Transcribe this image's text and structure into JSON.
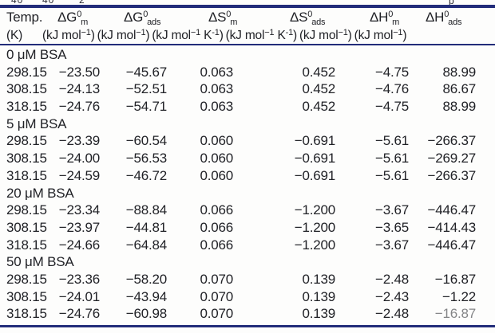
{
  "accent_color": "#222c7a",
  "clipped_fragments": {
    "f1": "40",
    "f2": "40",
    "f3": "2",
    "f4": "p"
  },
  "table": {
    "columns": [
      {
        "sym": "Temp.",
        "unit_pre": "(K)"
      },
      {
        "sym": "ΔG",
        "sym_sup": "0",
        "sym_sub": "m",
        "unit_pre": "(kJ mol",
        "unit_sup1": "−1",
        "unit_mid": ")"
      },
      {
        "sym": "ΔG",
        "sym_sup": "0",
        "sym_sub": "ads",
        "unit_pre": "(kJ mol",
        "unit_sup1": "−1",
        "unit_mid": ")"
      },
      {
        "sym": "ΔS",
        "sym_sup": "0",
        "sym_sub": "m",
        "unit_pre": "(kJ mol",
        "unit_sup1": "−1",
        "unit_mid": " K",
        "unit_sup2": "-1",
        "unit_post": ")"
      },
      {
        "sym": "ΔS",
        "sym_sup": "0",
        "sym_sub": "ads",
        "unit_pre": "(kJ mol",
        "unit_sup1": "−1",
        "unit_mid": " K",
        "unit_sup2": "-1",
        "unit_post": ")"
      },
      {
        "sym": "ΔH",
        "sym_sup": "0",
        "sym_sub": "m",
        "unit_pre": "(kJ mol",
        "unit_sup1": "−1",
        "unit_mid": ")"
      },
      {
        "sym": "ΔH",
        "sym_sup": "0",
        "sym_sub": "ads",
        "unit_pre": "(kJ mol",
        "unit_sup1": "−1",
        "unit_mid": ")"
      }
    ],
    "sections": [
      {
        "label": "0 μM BSA",
        "rows": [
          [
            "298.15",
            "−23.50",
            "−45.67",
            "0.063",
            "0.452",
            "−4.75",
            "88.99"
          ],
          [
            "308.15",
            "−24.13",
            "−52.51",
            "0.063",
            "0.452",
            "−4.76",
            "86.67"
          ],
          [
            "318.15",
            "−24.76",
            "−54.71",
            "0.063",
            "0.452",
            "−4.75",
            "88.99"
          ]
        ]
      },
      {
        "label": "5 μM BSA",
        "rows": [
          [
            "298.15",
            "−23.39",
            "−60.54",
            "0.060",
            "−0.691",
            "−5.61",
            "−266.37"
          ],
          [
            "308.15",
            "−24.00",
            "−56.53",
            "0.060",
            "−0.691",
            "−5.61",
            "−269.27"
          ],
          [
            "318.15",
            "−24.59",
            "−46.72",
            "0.060",
            "−0.691",
            "−5.61",
            "−266.37"
          ]
        ]
      },
      {
        "label": "20 μM BSA",
        "rows": [
          [
            "298.15",
            "−23.34",
            "−88.84",
            "0.066",
            "−1.200",
            "−3.67",
            "−446.47"
          ],
          [
            "308.15",
            "−23.97",
            "−44.81",
            "0.066",
            "−1.200",
            "−3.65",
            "−414.43"
          ],
          [
            "318.15",
            "−24.66",
            "−64.84",
            "0.066",
            "−1.200",
            "−3.67",
            "−446.47"
          ]
        ]
      },
      {
        "label": "50 μM BSA",
        "rows": [
          [
            "298.15",
            "−23.36",
            "−58.20",
            "0.070",
            "0.139",
            "−2.48",
            "−16.87"
          ],
          [
            "308.15",
            "−24.01",
            "−43.94",
            "0.070",
            "0.139",
            "−2.43",
            "−1.22"
          ],
          [
            "318.15",
            "−24.76",
            "−60.98",
            "0.070",
            "0.139",
            "−2.48",
            "−16.87"
          ]
        ]
      }
    ],
    "faded_cell": {
      "section": 3,
      "row": 2,
      "col": 6
    }
  }
}
